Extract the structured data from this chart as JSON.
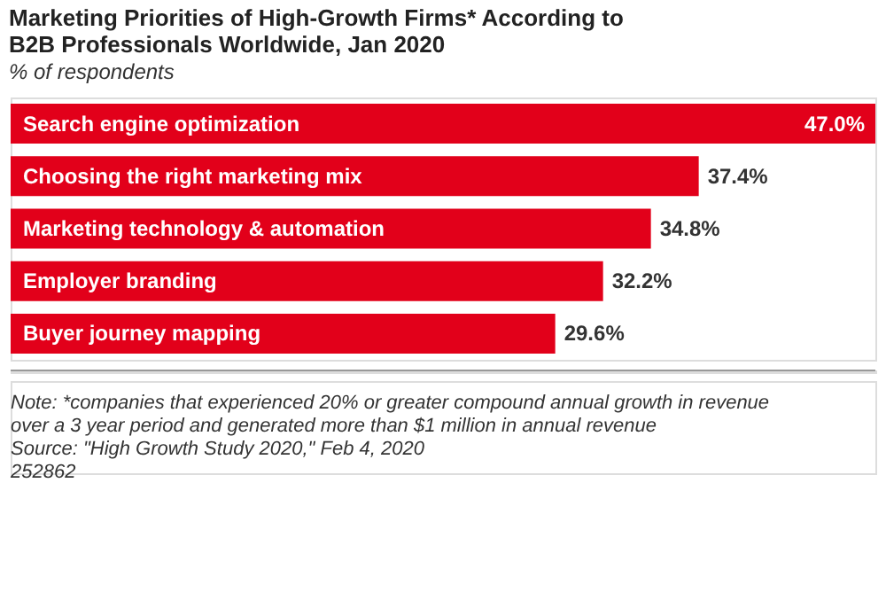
{
  "chart_data": {
    "type": "bar",
    "orientation": "horizontal",
    "title": "Marketing Priorities of High-Growth Firms* According to B2B Professionals Worldwide, Jan 2020",
    "subtitle": "% of respondents",
    "categories": [
      "Search engine optimization",
      "Choosing the right marketing mix",
      "Marketing technology & automation",
      "Employer branding",
      "Buyer journey mapping"
    ],
    "values": [
      47.0,
      37.4,
      34.8,
      32.2,
      29.6
    ],
    "value_labels": [
      "47.0%",
      "37.4%",
      "34.8%",
      "32.2%",
      "29.6%"
    ],
    "color": "#e2001a",
    "annotations": [
      "Note: *companies that experienced 20% or greater compound annual growth in revenue over a 3 year period and generated more than $1 million in annual revenue",
      "Source: \"High Growth Study 2020,\" Feb 4, 2020",
      "252862"
    ]
  }
}
